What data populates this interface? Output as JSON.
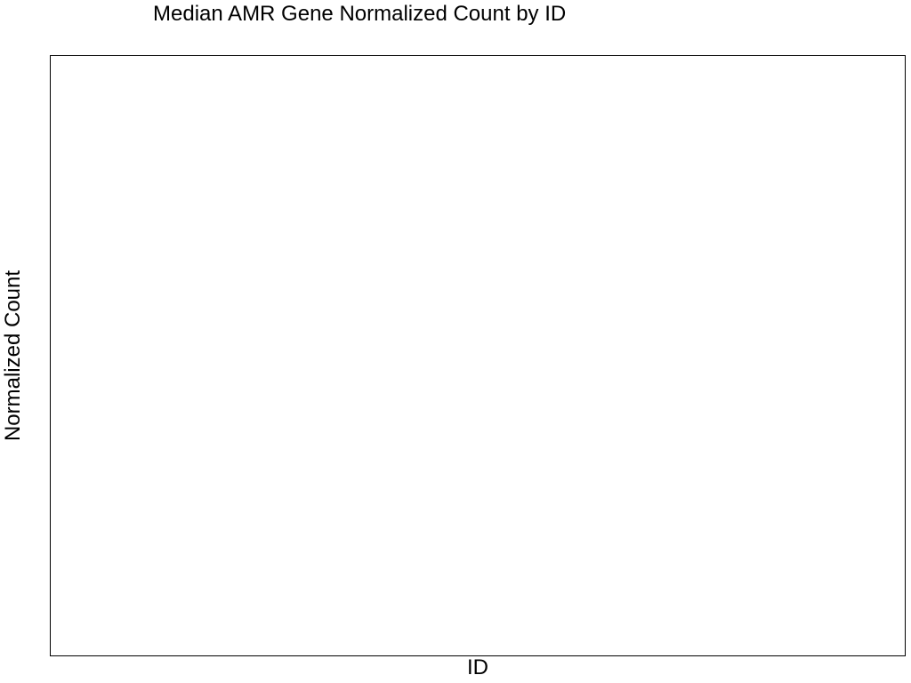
{
  "chart_data": {
    "type": "bar",
    "title": "Median AMR Gene Normalized Count by ID",
    "xlabel": "ID",
    "ylabel": "Normalized Count",
    "categories": [],
    "values": [],
    "grid": false,
    "legend": "none",
    "colors": {
      "background": "#ffffff",
      "panel_border": "#000000",
      "text": "#000000"
    }
  }
}
